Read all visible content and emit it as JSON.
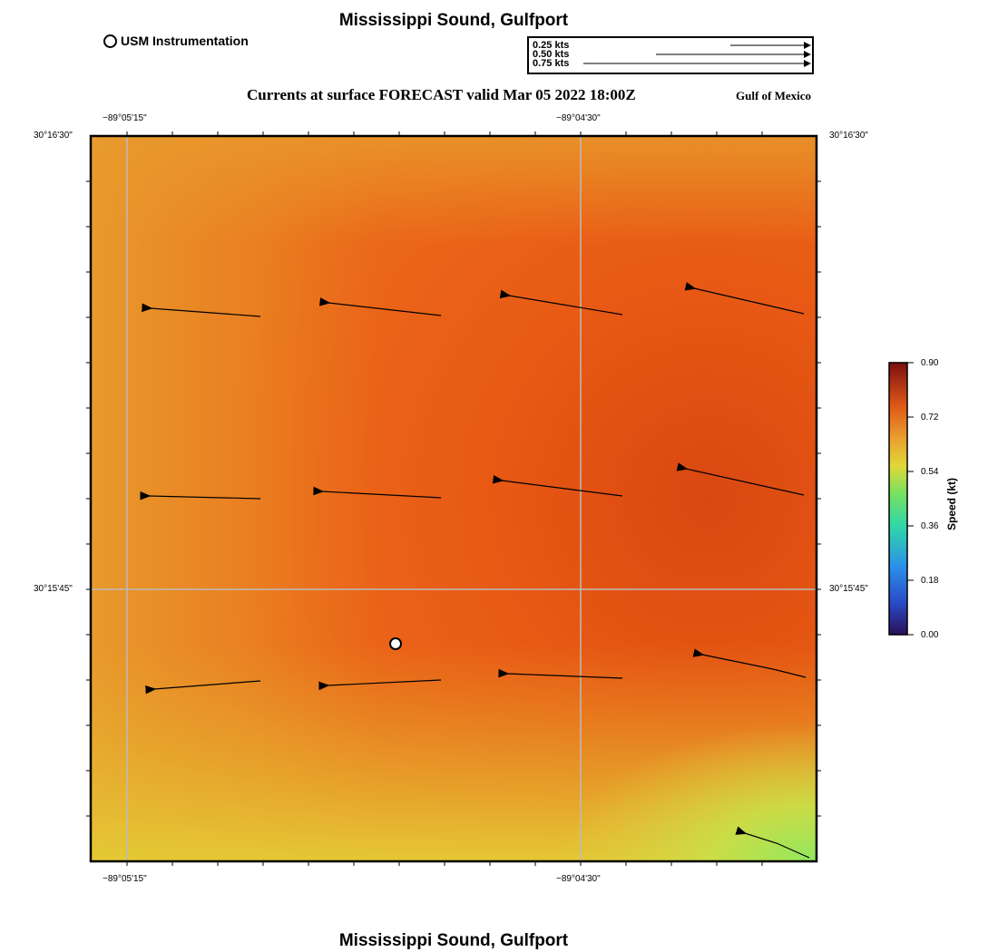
{
  "page": {
    "title": "Mississippi Sound, Gulfport",
    "bottom_title": "Mississippi Sound, Gulfport",
    "subtitle": "Currents at surface FORECAST valid Mar 05 2022 18:00Z",
    "region": "Gulf of Mexico"
  },
  "station_legend": {
    "label": "USM Instrumentation"
  },
  "speed_legend": {
    "items": [
      {
        "label": "0.25 kts",
        "speed": 0.25
      },
      {
        "label": "0.50 kts",
        "speed": 0.5
      },
      {
        "label": "0.75 kts",
        "speed": 0.75
      }
    ]
  },
  "axes": {
    "lon_labels": [
      "−89°05'15\"",
      "−89°04'30\""
    ],
    "lat_labels": [
      "30°16'30\"",
      "30°15'45\""
    ]
  },
  "colorbar": {
    "title": "Speed (kt)",
    "ticks": [
      "0.90",
      "0.72",
      "0.54",
      "0.36",
      "0.18",
      "0.00"
    ],
    "min": 0.0,
    "max": 0.9
  },
  "colors": {
    "field_high": "#dc4a10",
    "field_mid": "#ec6a1a",
    "field_low": "#e8c030",
    "field_green": "#90e060",
    "grid": "#bbbbbb"
  }
}
